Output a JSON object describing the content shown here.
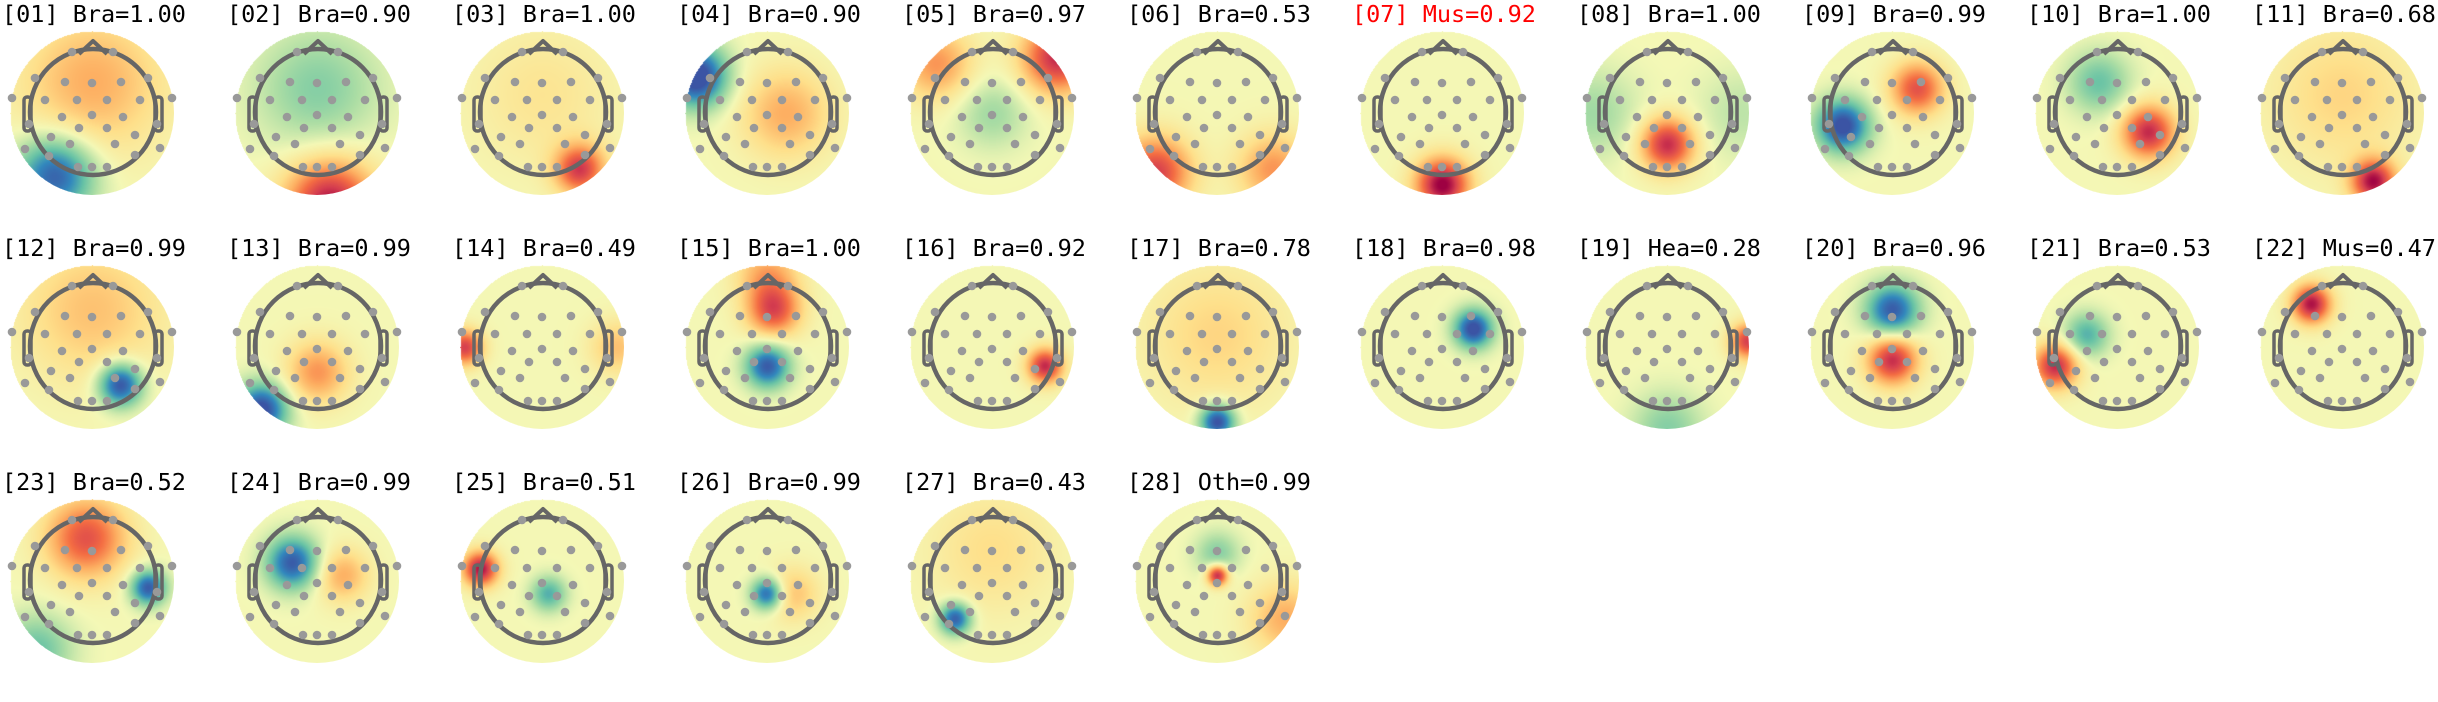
{
  "chart_data": {
    "type": "heatmap",
    "colormap": [
      "#3b54a4",
      "#3288bd",
      "#66c2a5",
      "#abdda4",
      "#f4f8b6",
      "#fee08b",
      "#fdae61",
      "#f46d43",
      "#d53e4f",
      "#9e0142"
    ],
    "highlight_color": "#ff0000",
    "panels": [
      {
        "title": "[01] Bra=1.00",
        "sources": [
          [
            0,
            0.5,
            0.5,
            0.8
          ],
          [
            -0.6,
            -1.0,
            -1.0,
            0.45
          ]
        ]
      },
      {
        "title": "[02] Bra=0.90",
        "sources": [
          [
            0,
            0.4,
            -0.4,
            0.7
          ],
          [
            0.2,
            -1.45,
            1.2,
            0.5
          ]
        ]
      },
      {
        "title": "[03] Bra=1.00",
        "sources": [
          [
            0.6,
            -0.9,
            1.0,
            0.28
          ],
          [
            0,
            0.3,
            0.2,
            0.8
          ]
        ]
      },
      {
        "title": "[04] Bra=0.90",
        "sources": [
          [
            -1.15,
            0.6,
            -1.2,
            0.35
          ],
          [
            0.3,
            0,
            0.5,
            0.5
          ]
        ]
      },
      {
        "title": "[05] Bra=0.97",
        "sources": [
          [
            1.05,
            0.9,
            1.1,
            0.4
          ],
          [
            -0.9,
            0.8,
            0.6,
            0.4
          ],
          [
            0,
            0,
            -0.3,
            0.4
          ]
        ]
      },
      {
        "title": "[06] Bra=0.53",
        "sources": [
          [
            -1.0,
            -0.95,
            1.0,
            0.4
          ],
          [
            0.9,
            -0.9,
            0.6,
            0.4
          ]
        ]
      },
      {
        "title": "[07] Mus=0.92",
        "highlight": true,
        "sources": [
          [
            0,
            -1.15,
            1.3,
            0.3
          ]
        ]
      },
      {
        "title": "[08] Bra=1.00",
        "sources": [
          [
            0,
            -0.5,
            1.1,
            0.3
          ],
          [
            -1.2,
            0,
            -0.3,
            0.5
          ],
          [
            1.2,
            0,
            -0.2,
            0.5
          ]
        ]
      },
      {
        "title": "[09] Bra=0.99",
        "sources": [
          [
            -0.8,
            -0.2,
            -1.1,
            0.3
          ],
          [
            0.4,
            0.4,
            0.9,
            0.3
          ]
        ]
      },
      {
        "title": "[10] Bra=1.00",
        "sources": [
          [
            0.5,
            -0.3,
            1.1,
            0.3
          ],
          [
            -0.3,
            0.5,
            -0.5,
            0.35
          ]
        ]
      },
      {
        "title": "[11] Bra=0.68",
        "sources": [
          [
            0.5,
            -1.1,
            1.2,
            0.25
          ],
          [
            0,
            0.3,
            0.3,
            0.8
          ]
        ]
      },
      {
        "title": "[12] Bra=0.99",
        "sources": [
          [
            0.45,
            -0.6,
            -1.1,
            0.25
          ],
          [
            0,
            0.6,
            0.4,
            0.8
          ]
        ]
      },
      {
        "title": "[13] Bra=0.99",
        "sources": [
          [
            -0.9,
            -1.0,
            -1.1,
            0.3
          ],
          [
            0,
            -0.4,
            0.6,
            0.35
          ]
        ]
      },
      {
        "title": "[14] Bra=0.49",
        "sources": [
          [
            -1.25,
            0,
            1.0,
            0.2
          ],
          [
            1.2,
            0,
            0.4,
            0.3
          ]
        ]
      },
      {
        "title": "[15] Bra=1.00",
        "sources": [
          [
            0.1,
            0.6,
            0.9,
            0.3
          ],
          [
            0,
            -0.3,
            -1.0,
            0.25
          ],
          [
            0,
            1.2,
            0.5,
            0.35
          ]
        ]
      },
      {
        "title": "[16] Bra=0.92",
        "sources": [
          [
            0.85,
            -0.3,
            1.1,
            0.2
          ]
        ]
      },
      {
        "title": "[17] Bra=0.78",
        "sources": [
          [
            0,
            -1.2,
            -1.1,
            0.2
          ],
          [
            0,
            0.2,
            0.3,
            0.8
          ]
        ]
      },
      {
        "title": "[18] Bra=0.98",
        "sources": [
          [
            0.5,
            0.3,
            -1.1,
            0.22
          ]
        ]
      },
      {
        "title": "[19] Hea=0.28",
        "sources": [
          [
            1.3,
            0.1,
            1.0,
            0.2
          ],
          [
            0,
            -1.3,
            -0.4,
            0.4
          ]
        ]
      },
      {
        "title": "[20] Bra=0.96",
        "sources": [
          [
            0,
            0.6,
            -1.0,
            0.3
          ],
          [
            0,
            -0.2,
            1.1,
            0.28
          ]
        ]
      },
      {
        "title": "[21] Bra=0.53",
        "sources": [
          [
            -1.0,
            -0.3,
            1.1,
            0.25
          ],
          [
            -0.5,
            0.2,
            -0.6,
            0.25
          ]
        ]
      },
      {
        "title": "[22] Mus=0.47",
        "sources": [
          [
            -0.5,
            0.7,
            1.2,
            0.22
          ]
        ]
      },
      {
        "title": "[23] Bra=0.52",
        "sources": [
          [
            -0.1,
            0.7,
            0.9,
            0.45
          ],
          [
            0.9,
            -0.1,
            -1.0,
            0.2
          ],
          [
            -0.9,
            -1.1,
            -0.5,
            0.4
          ]
        ]
      },
      {
        "title": "[24] Bra=0.99",
        "sources": [
          [
            -0.4,
            0.3,
            -1.0,
            0.3
          ],
          [
            0.4,
            0.1,
            0.5,
            0.3
          ]
        ]
      },
      {
        "title": "[25] Bra=0.51",
        "sources": [
          [
            -1.0,
            0.2,
            1.2,
            0.2
          ],
          [
            0.1,
            -0.2,
            -0.6,
            0.2
          ]
        ]
      },
      {
        "title": "[26] Bra=0.99",
        "sources": [
          [
            0,
            -0.2,
            -1.0,
            0.18
          ],
          [
            0.4,
            -0.2,
            0.4,
            0.3
          ]
        ]
      },
      {
        "title": "[27] Bra=0.43",
        "sources": [
          [
            -0.6,
            -0.6,
            -1.0,
            0.18
          ],
          [
            0,
            0.5,
            0.25,
            0.7
          ]
        ]
      },
      {
        "title": "[28] Oth=0.99",
        "sources": [
          [
            0,
            0.1,
            1.2,
            0.12
          ],
          [
            0,
            0.45,
            -0.4,
            0.25
          ],
          [
            1.1,
            -0.6,
            0.5,
            0.4
          ]
        ]
      }
    ]
  }
}
